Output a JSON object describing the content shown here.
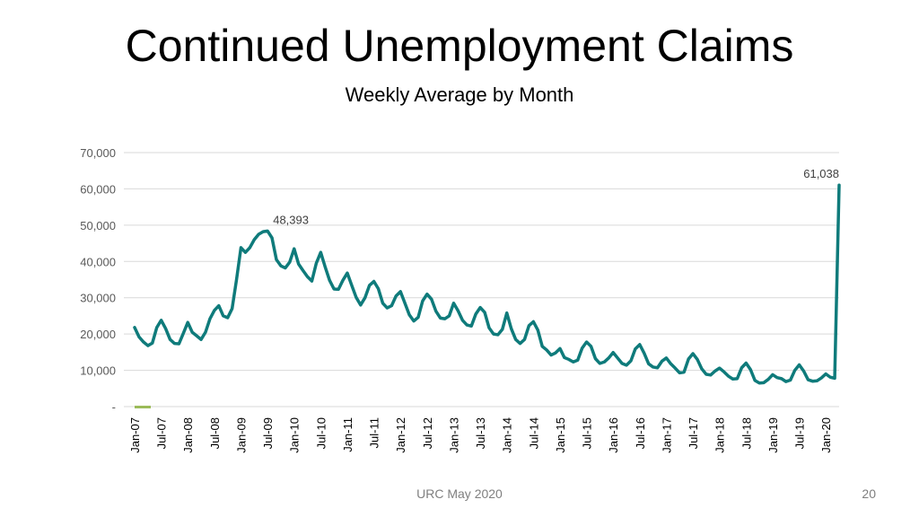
{
  "slide": {
    "title": "Continued Unemployment Claims",
    "subtitle": "Weekly Average by Month",
    "footer": "URC May 2020",
    "page_number": "20"
  },
  "colors": {
    "line": "#0f7b7b",
    "grid": "#d9d9d9",
    "axis_text": "#595959",
    "legend_marker": "#9bbb59"
  },
  "chart_data": {
    "type": "line",
    "title": "Continued Unemployment Claims",
    "subtitle": "Weekly Average by Month",
    "ylim": [
      0,
      70000
    ],
    "yticks": [
      0,
      10000,
      20000,
      30000,
      40000,
      50000,
      60000,
      70000
    ],
    "ytick_labels": [
      "-",
      "10,000",
      "20,000",
      "30,000",
      "40,000",
      "50,000",
      "60,000",
      "70,000"
    ],
    "xtick_labels": [
      "Jan-07",
      "Jul-07",
      "Jan-08",
      "Jul-08",
      "Jan-09",
      "Jul-09",
      "Jan-10",
      "Jul-10",
      "Jan-11",
      "Jul-11",
      "Jan-12",
      "Jul-12",
      "Jan-13",
      "Jul-13",
      "Jan-14",
      "Jul-14",
      "Jan-15",
      "Jul-15",
      "Jan-16",
      "Jul-16",
      "Jan-17",
      "Jul-17",
      "Jan-18",
      "Jul-18",
      "Jan-19",
      "Jul-19",
      "Jan-20"
    ],
    "grid": true,
    "series": [
      {
        "start": "Jan-07",
        "frequency": "monthly",
        "values": [
          21800,
          19200,
          17800,
          16800,
          17500,
          21800,
          23800,
          21500,
          18500,
          17400,
          17300,
          20200,
          23200,
          20500,
          19500,
          18500,
          20500,
          24200,
          26500,
          27800,
          25000,
          24500,
          27000,
          35000,
          43800,
          42500,
          43800,
          46000,
          47500,
          48200,
          48393,
          46500,
          40500,
          38800,
          38200,
          39800,
          43500,
          39300,
          37500,
          35800,
          34600,
          39500,
          42500,
          38500,
          34800,
          32400,
          32300,
          34800,
          36800,
          33400,
          30100,
          28000,
          30000,
          33400,
          34500,
          32500,
          28500,
          27200,
          27800,
          30500,
          31700,
          28500,
          25300,
          23600,
          24600,
          29100,
          31000,
          29600,
          26300,
          24400,
          24200,
          25000,
          28500,
          26400,
          23800,
          22500,
          22200,
          25500,
          27300,
          26000,
          21700,
          20000,
          19800,
          21300,
          25800,
          21500,
          18500,
          17400,
          18500,
          22300,
          23400,
          21100,
          16600,
          15600,
          14200,
          14800,
          16000,
          13500,
          13000,
          12300,
          12800,
          16100,
          17800,
          16600,
          13200,
          11900,
          12300,
          13400,
          14900,
          13400,
          11900,
          11400,
          12600,
          15900,
          17100,
          14700,
          11800,
          10900,
          10700,
          12500,
          13400,
          11800,
          10600,
          9300,
          9500,
          13100,
          14600,
          13000,
          10400,
          8900,
          8700,
          9800,
          10600,
          9600,
          8400,
          7600,
          7700,
          10700,
          12000,
          10200,
          7200,
          6500,
          6600,
          7500,
          8800,
          8000,
          7700,
          6900,
          7300,
          10000,
          11500,
          9800,
          7400,
          7000,
          7100,
          7900,
          9000,
          8100,
          7800,
          61038
        ]
      }
    ],
    "annotations": [
      {
        "text": "48,393",
        "x": "Jul-09",
        "y": 48393
      },
      {
        "text": "61,038",
        "x": "Apr-20",
        "y": 61038
      }
    ]
  }
}
